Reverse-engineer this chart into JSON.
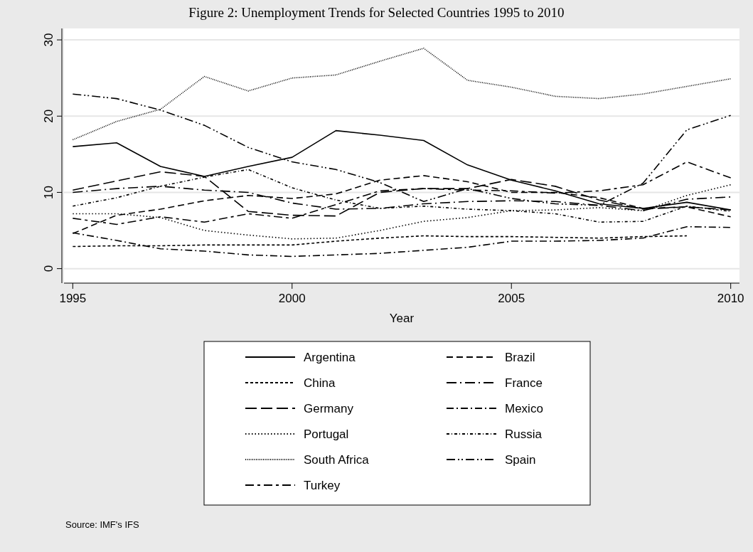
{
  "chart_data": {
    "type": "line",
    "title": "Figure 2: Unemployment Trends for Selected Countries 1995 to 2010",
    "xlabel": "Year",
    "x": [
      1995,
      1996,
      1997,
      1998,
      1999,
      2000,
      2001,
      2002,
      2003,
      2004,
      2005,
      2006,
      2007,
      2008,
      2009,
      2010
    ],
    "xlim": [
      1994.8,
      2010.2
    ],
    "xticks": [
      1995,
      2000,
      2005,
      2010
    ],
    "ylim": [
      -1.9,
      31.5
    ],
    "yticks": [
      0,
      10,
      20,
      30
    ],
    "grid": "y",
    "legend": "bottom",
    "marker": "none",
    "series": [
      {
        "name": "Argentina",
        "color": "#000000",
        "line_style": "solid",
        "values": [
          16.0,
          16.5,
          13.4,
          12.1,
          13.4,
          14.6,
          18.1,
          17.5,
          16.8,
          13.6,
          11.6,
          10.2,
          8.5,
          7.9,
          8.7,
          7.7
        ]
      },
      {
        "name": "Brazil",
        "color": "#000000",
        "line_style": "dashed",
        "values": [
          4.6,
          7.0,
          7.8,
          8.9,
          9.6,
          9.2,
          9.8,
          11.6,
          12.2,
          11.4,
          10.0,
          10.0,
          9.3,
          7.9,
          8.1,
          6.8
        ]
      },
      {
        "name": "China",
        "color": "#000000",
        "line_style": "dashed",
        "values": [
          2.9,
          3.0,
          3.0,
          3.1,
          3.1,
          3.1,
          3.6,
          4.0,
          4.3,
          4.2,
          4.2,
          4.1,
          4.0,
          4.2,
          4.3,
          null
        ]
      },
      {
        "name": "France",
        "color": "#000000",
        "line_style": "dashed",
        "values": [
          10.0,
          10.5,
          10.8,
          10.3,
          10.0,
          8.6,
          7.8,
          7.9,
          8.5,
          8.8,
          8.9,
          8.8,
          8.3,
          7.6,
          9.1,
          9.4
        ]
      },
      {
        "name": "Germany",
        "color": "#000000",
        "line_style": "dashed",
        "values": [
          10.3,
          11.5,
          12.7,
          12.1,
          7.5,
          7.0,
          6.9,
          10.0,
          10.5,
          10.5,
          11.7,
          10.8,
          9.0,
          7.8,
          8.1,
          7.7
        ]
      },
      {
        "name": "Mexico",
        "color": "#000000",
        "line_style": "dashed",
        "values": [
          4.7,
          3.7,
          2.6,
          2.3,
          1.8,
          1.6,
          1.8,
          2.0,
          2.4,
          2.8,
          3.6,
          3.6,
          3.7,
          4.0,
          5.5,
          5.4
        ]
      },
      {
        "name": "Portugal",
        "color": "#000000",
        "line_style": "dotted",
        "values": [
          7.2,
          7.2,
          6.7,
          5.0,
          4.4,
          3.9,
          4.0,
          5.0,
          6.2,
          6.7,
          7.6,
          7.7,
          8.0,
          7.6,
          9.6,
          11.0
        ]
      },
      {
        "name": "Russia",
        "color": "#000000",
        "line_style": "dashed",
        "values": [
          8.2,
          9.3,
          10.8,
          12.0,
          13.0,
          10.6,
          9.0,
          7.9,
          8.2,
          7.8,
          7.6,
          7.2,
          6.1,
          6.2,
          8.2,
          7.5
        ]
      },
      {
        "name": "South Africa",
        "color": "#000000",
        "line_style": "dotted",
        "values": [
          16.9,
          19.3,
          20.9,
          25.2,
          23.3,
          25.0,
          25.4,
          27.2,
          28.9,
          24.7,
          23.8,
          22.6,
          22.3,
          22.9,
          23.9,
          24.9
        ]
      },
      {
        "name": "Spain",
        "color": "#000000",
        "line_style": "dashed",
        "values": [
          22.9,
          22.3,
          20.8,
          18.8,
          15.9,
          14.0,
          13.0,
          11.3,
          8.8,
          10.5,
          9.2,
          8.5,
          8.3,
          11.2,
          18.2,
          20.1
        ]
      },
      {
        "name": "Turkey",
        "color": "#000000",
        "line_style": "dashed",
        "values": [
          6.6,
          5.8,
          6.8,
          6.1,
          7.2,
          6.6,
          8.4,
          10.2,
          10.5,
          10.3,
          10.2,
          9.9,
          10.2,
          11.0,
          14.0,
          11.9
        ]
      }
    ],
    "annotations": [
      "Source: IMF's IFS"
    ]
  }
}
